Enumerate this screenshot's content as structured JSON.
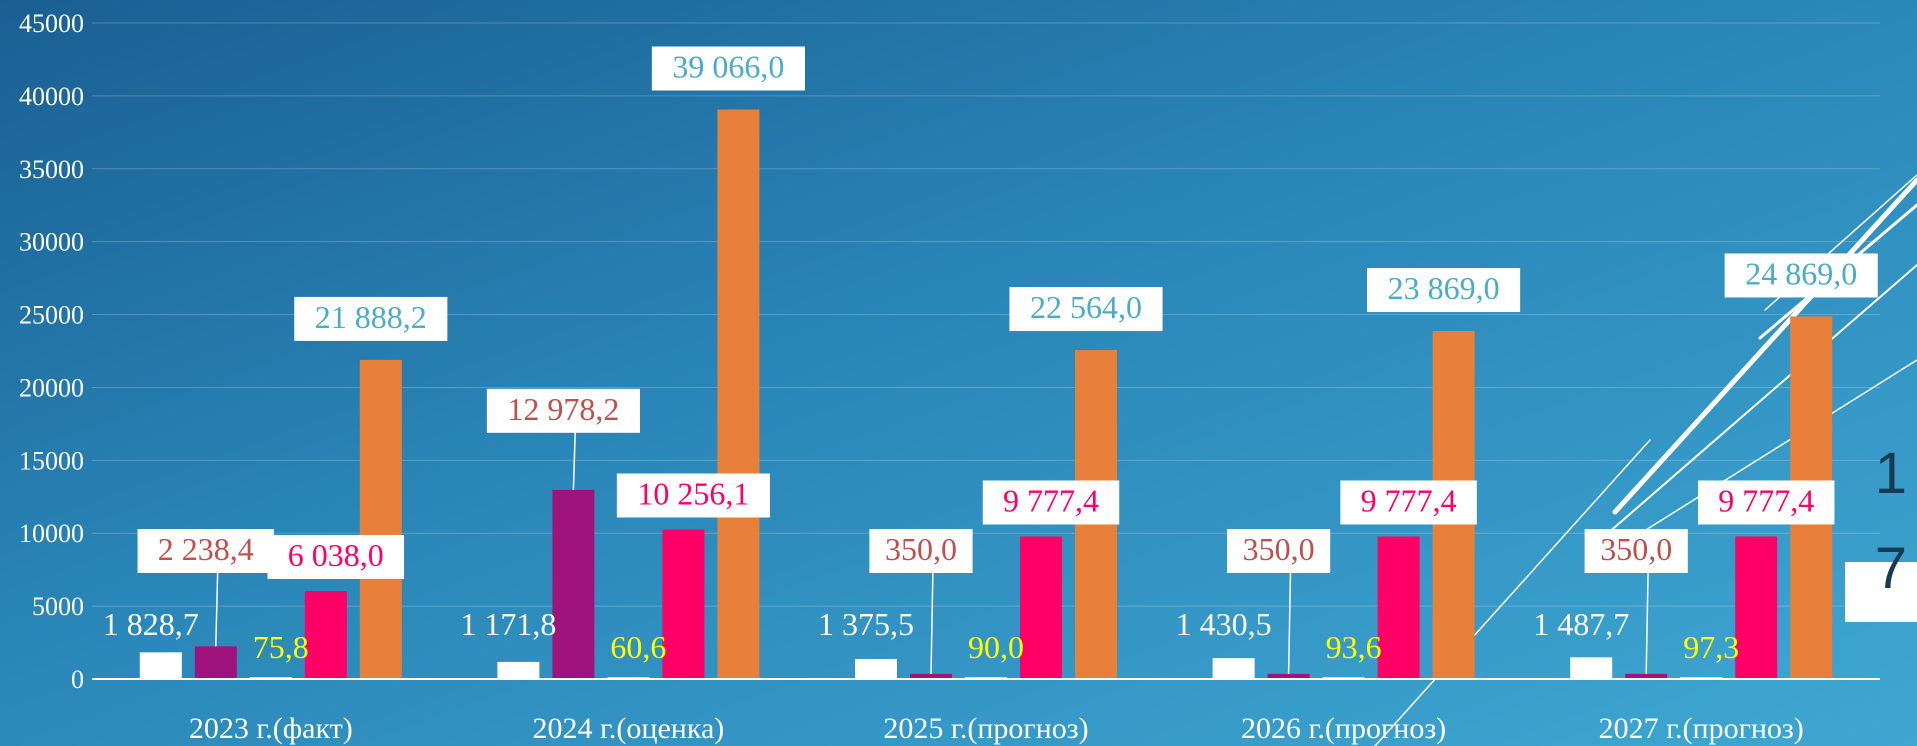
{
  "page_number": [
    "1",
    "7"
  ],
  "chart_data": {
    "type": "bar",
    "categories": [
      "2023 г.(факт)",
      "2024 г.(оценка)",
      "2025 г.(прогноз)",
      "2026 г.(прогноз)",
      "2027 г.(прогноз)"
    ],
    "ylim": [
      0,
      45000
    ],
    "yticks": [
      0,
      5000,
      10000,
      15000,
      20000,
      25000,
      30000,
      35000,
      40000,
      45000
    ],
    "grid": true,
    "legend": "none",
    "series": [
      {
        "values": [
          1828.7,
          1171.8,
          1375.5,
          1430.5,
          1487.7
        ],
        "labels": [
          "1 828,7",
          "1 171,8",
          "1 375,5",
          "1 430,5",
          "1 487,7"
        ],
        "color": "#ffffff",
        "label_color": "#ffffff",
        "label_boxed": false
      },
      {
        "values": [
          2238.4,
          12978.2,
          350.0,
          350.0,
          350.0
        ],
        "labels": [
          "2 238,4",
          "12 978,2",
          "350,0",
          "350,0",
          "350,0"
        ],
        "color": "#a0137c",
        "label_color": "#c0504d",
        "label_boxed": true
      },
      {
        "values": [
          75.8,
          60.6,
          90.0,
          93.6,
          97.3
        ],
        "labels": [
          "75,8",
          "60,6",
          "90,0",
          "93,6",
          "97,3"
        ],
        "color": "#f2f23a",
        "label_color": "#ffff00",
        "label_boxed": false
      },
      {
        "values": [
          6038.0,
          10256.1,
          9777.4,
          9777.4,
          9777.4
        ],
        "labels": [
          "6 038,0",
          "10 256,1",
          "9 777,4",
          "9 777,4",
          "9 777,4"
        ],
        "color": "#ff0066",
        "label_color": "#ff0066",
        "label_boxed": true
      },
      {
        "values": [
          21888.2,
          39066.0,
          22564.0,
          23869.0,
          24869.0
        ],
        "labels": [
          "21 888,2",
          "39 066,0",
          "22 564,0",
          "23 869,0",
          "24 869,0"
        ],
        "color": "#e8803a",
        "label_color": "#4bacc6",
        "label_boxed": true
      }
    ]
  }
}
